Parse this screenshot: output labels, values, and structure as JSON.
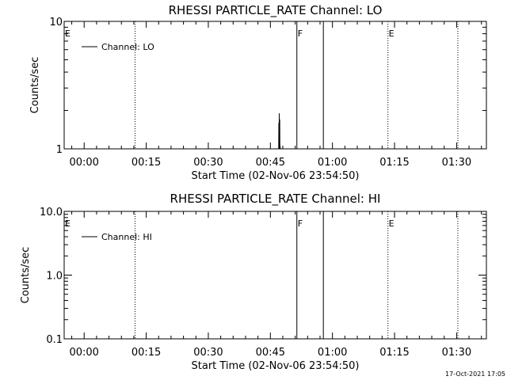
{
  "footer": {
    "timestamp": "17-Oct-2021 17:05"
  },
  "chart_data": [
    {
      "type": "line",
      "title": "RHESSI PARTICLE_RATE Channel: LO",
      "xlabel": "Start Time (02-Nov-06 23:54:50)",
      "ylabel": "Counts/sec",
      "y_scale": "log",
      "ylim": [
        1,
        10
      ],
      "xlim_minutes": [
        -4.83,
        97.2
      ],
      "x_ticks": [
        {
          "label": "00:00",
          "value": 0
        },
        {
          "label": "00:15",
          "value": 15
        },
        {
          "label": "00:30",
          "value": 30
        },
        {
          "label": "00:45",
          "value": 45
        },
        {
          "label": "01:00",
          "value": 60
        },
        {
          "label": "01:15",
          "value": 75
        },
        {
          "label": "01:30",
          "value": 90
        }
      ],
      "y_ticks": [
        {
          "label": "1",
          "value": 1
        },
        {
          "label": "10",
          "value": 10
        }
      ],
      "legend": {
        "position": "top-left",
        "entries": [
          "Channel: LO"
        ]
      },
      "series": [
        {
          "name": "Channel: LO",
          "x": [
            46.8,
            47.0,
            47.05,
            47.1,
            47.15,
            47.2,
            47.25,
            47.3,
            47.35,
            47.4,
            47.6
          ],
          "y": [
            1,
            1,
            1.6,
            1,
            1.9,
            1,
            1.7,
            1,
            1.05,
            1,
            1
          ]
        }
      ],
      "markers": [
        {
          "label": "E",
          "x": -4.83,
          "style": "dotted"
        },
        {
          "label": "",
          "x": 12.3,
          "style": "dotted"
        },
        {
          "label": "F",
          "x": 51.4,
          "style": "solid"
        },
        {
          "label": "",
          "x": 57.8,
          "style": "solid"
        },
        {
          "label": "E",
          "x": 73.4,
          "style": "dotted"
        },
        {
          "label": "",
          "x": 90.3,
          "style": "dotted"
        }
      ]
    },
    {
      "type": "line",
      "title": "RHESSI PARTICLE_RATE Channel: HI",
      "xlabel": "Start Time (02-Nov-06 23:54:50)",
      "ylabel": "Counts/sec",
      "y_scale": "log",
      "ylim": [
        0.1,
        10
      ],
      "xlim_minutes": [
        -4.83,
        97.2
      ],
      "x_ticks": [
        {
          "label": "00:00",
          "value": 0
        },
        {
          "label": "00:15",
          "value": 15
        },
        {
          "label": "00:30",
          "value": 30
        },
        {
          "label": "00:45",
          "value": 45
        },
        {
          "label": "01:00",
          "value": 60
        },
        {
          "label": "01:15",
          "value": 75
        },
        {
          "label": "01:30",
          "value": 90
        }
      ],
      "y_ticks": [
        {
          "label": "0.1",
          "value": 0.1
        },
        {
          "label": "1.0",
          "value": 1
        },
        {
          "label": "10.0",
          "value": 10
        }
      ],
      "legend": {
        "position": "top-left",
        "entries": [
          "Channel: HI"
        ]
      },
      "series": [
        {
          "name": "Channel: HI",
          "x": [],
          "y": []
        }
      ],
      "markers": [
        {
          "label": "E",
          "x": -4.83,
          "style": "dotted"
        },
        {
          "label": "",
          "x": 12.3,
          "style": "dotted"
        },
        {
          "label": "F",
          "x": 51.4,
          "style": "solid"
        },
        {
          "label": "",
          "x": 57.8,
          "style": "solid"
        },
        {
          "label": "E",
          "x": 73.4,
          "style": "dotted"
        },
        {
          "label": "",
          "x": 90.3,
          "style": "dotted"
        }
      ]
    }
  ]
}
